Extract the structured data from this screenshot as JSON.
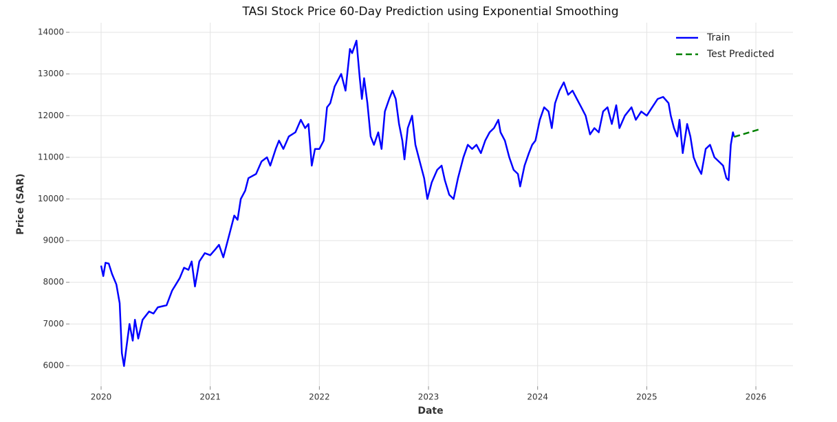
{
  "chart_data": {
    "type": "line",
    "title": "TASI Stock Price 60-Day Prediction using Exponential Smoothing",
    "x_label": "Date",
    "y_label": "Price (SAR)",
    "xlim": [
      2019.71,
      2026.34
    ],
    "xticks": [
      2020,
      2021,
      2022,
      2023,
      2024,
      2025,
      2026
    ],
    "ylim": [
      5505,
      14231
    ],
    "yticks": [
      6000,
      7000,
      8000,
      9000,
      10000,
      11000,
      12000,
      13000,
      14000
    ],
    "grid": true,
    "legend": "upper right",
    "series": [
      {
        "name": "Train",
        "color": "#0000ff",
        "linestyle": "solid",
        "x": [
          2020.0,
          2020.02,
          2020.04,
          2020.07,
          2020.1,
          2020.14,
          2020.17,
          2020.19,
          2020.21,
          2020.23,
          2020.26,
          2020.29,
          2020.31,
          2020.34,
          2020.38,
          2020.44,
          2020.48,
          2020.52,
          2020.6,
          2020.65,
          2020.72,
          2020.76,
          2020.8,
          2020.83,
          2020.86,
          2020.9,
          2020.95,
          2021.0,
          2021.05,
          2021.08,
          2021.12,
          2021.17,
          2021.22,
          2021.25,
          2021.28,
          2021.32,
          2021.35,
          2021.42,
          2021.47,
          2021.52,
          2021.55,
          2021.6,
          2021.63,
          2021.67,
          2021.72,
          2021.78,
          2021.83,
          2021.87,
          2021.9,
          2021.93,
          2021.96,
          2022.0,
          2022.04,
          2022.07,
          2022.1,
          2022.14,
          2022.2,
          2022.24,
          2022.28,
          2022.3,
          2022.34,
          2022.37,
          2022.39,
          2022.41,
          2022.44,
          2022.47,
          2022.5,
          2022.54,
          2022.57,
          2022.6,
          2022.64,
          2022.67,
          2022.7,
          2022.73,
          2022.76,
          2022.78,
          2022.81,
          2022.85,
          2022.88,
          2022.92,
          2022.96,
          2022.99,
          2023.03,
          2023.08,
          2023.12,
          2023.15,
          2023.19,
          2023.23,
          2023.27,
          2023.32,
          2023.36,
          2023.4,
          2023.44,
          2023.48,
          2023.52,
          2023.56,
          2023.6,
          2023.64,
          2023.66,
          2023.7,
          2023.74,
          2023.78,
          2023.82,
          2023.84,
          2023.88,
          2023.92,
          2023.95,
          2023.98,
          2024.02,
          2024.06,
          2024.1,
          2024.13,
          2024.16,
          2024.2,
          2024.24,
          2024.28,
          2024.32,
          2024.36,
          2024.4,
          2024.44,
          2024.48,
          2024.52,
          2024.56,
          2024.6,
          2024.64,
          2024.68,
          2024.72,
          2024.75,
          2024.8,
          2024.86,
          2024.9,
          2024.95,
          2025.0,
          2025.05,
          2025.1,
          2025.15,
          2025.2,
          2025.22,
          2025.25,
          2025.28,
          2025.3,
          2025.33,
          2025.37,
          2025.4,
          2025.43,
          2025.46,
          2025.5,
          2025.54,
          2025.58,
          2025.62,
          2025.66,
          2025.7,
          2025.73,
          2025.75,
          2025.77,
          2025.79,
          2025.8
        ],
        "values": [
          8400,
          8150,
          8470,
          8450,
          8200,
          7950,
          7500,
          6300,
          5990,
          6400,
          7000,
          6600,
          7100,
          6650,
          7100,
          7300,
          7250,
          7400,
          7450,
          7800,
          8100,
          8350,
          8300,
          8500,
          7900,
          8500,
          8700,
          8650,
          8800,
          8900,
          8600,
          9100,
          9600,
          9500,
          10000,
          10200,
          10500,
          10600,
          10900,
          11000,
          10800,
          11200,
          11400,
          11200,
          11500,
          11600,
          11900,
          11700,
          11800,
          10800,
          11200,
          11200,
          11400,
          12200,
          12300,
          12700,
          13000,
          12600,
          13600,
          13500,
          13800,
          12900,
          12400,
          12900,
          12300,
          11500,
          11300,
          11600,
          11200,
          12100,
          12400,
          12600,
          12400,
          11800,
          11400,
          10950,
          11700,
          12000,
          11300,
          10900,
          10500,
          10000,
          10400,
          10700,
          10800,
          10450,
          10100,
          10000,
          10500,
          11000,
          11300,
          11200,
          11300,
          11100,
          11400,
          11600,
          11700,
          11900,
          11600,
          11400,
          11000,
          10700,
          10600,
          10300,
          10800,
          11100,
          11300,
          11400,
          11900,
          12200,
          12100,
          11700,
          12300,
          12600,
          12800,
          12500,
          12600,
          12400,
          12200,
          12000,
          11550,
          11700,
          11600,
          12100,
          12200,
          11800,
          12250,
          11700,
          12000,
          12200,
          11900,
          12100,
          12000,
          12200,
          12400,
          12450,
          12300,
          12000,
          11700,
          11500,
          11900,
          11100,
          11800,
          11500,
          11000,
          10800,
          10600,
          11200,
          11300,
          11000,
          10900,
          10800,
          10500,
          10450,
          11300,
          11600,
          11500
        ]
      },
      {
        "name": "Test Predicted",
        "color": "#008000",
        "linestyle": "dashed",
        "x": [
          2025.8,
          2026.03
        ],
        "values": [
          11490,
          11670
        ]
      }
    ]
  }
}
